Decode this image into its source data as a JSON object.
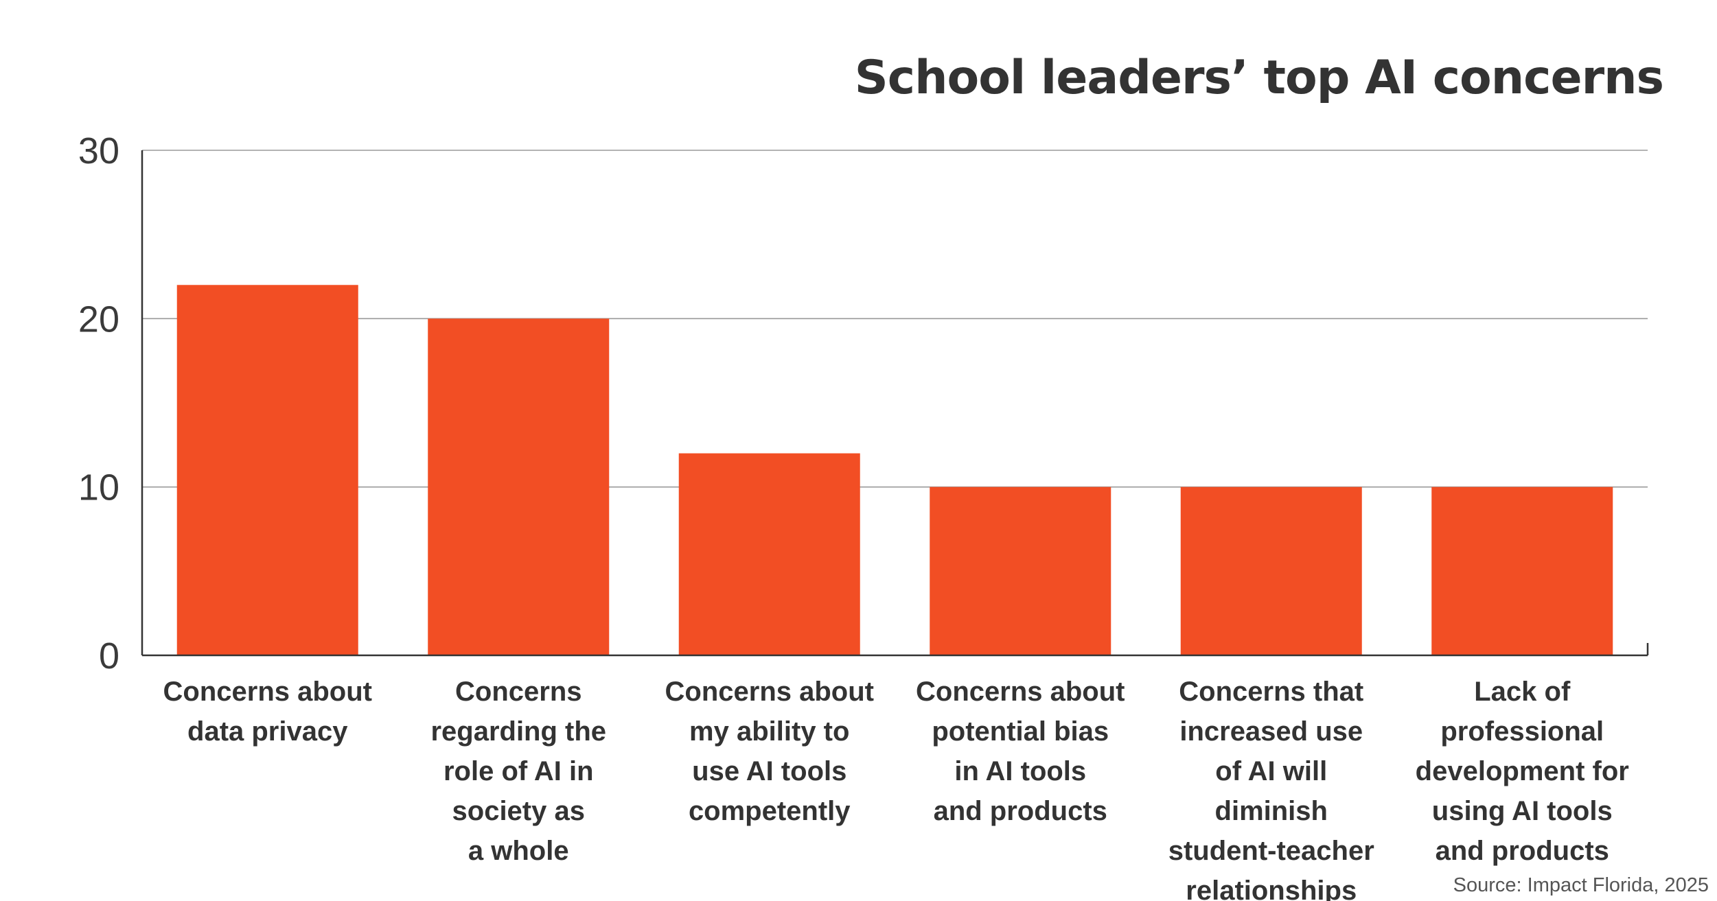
{
  "chart_data": {
    "type": "bar",
    "title": "School leaders’ top AI concerns",
    "xlabel": "",
    "ylabel": "",
    "ylim": [
      0,
      30
    ],
    "yticks": [
      0,
      10,
      20,
      30
    ],
    "grid": true,
    "bar_color": "#F24E24",
    "categories": [
      [
        "Concerns about",
        "data privacy"
      ],
      [
        "Concerns",
        "regarding the",
        "role of AI in",
        "society as",
        "a whole"
      ],
      [
        "Concerns about",
        "my ability to",
        "use AI tools",
        "competently"
      ],
      [
        "Concerns about",
        "potential bias",
        "in AI tools",
        "and products"
      ],
      [
        "Concerns that",
        "increased use",
        "of AI will",
        "diminish",
        "student-teacher",
        "relationships"
      ],
      [
        "Lack of",
        "professional",
        "development for",
        "using AI tools",
        "and products"
      ]
    ],
    "values": [
      22,
      20,
      12,
      10,
      10,
      10
    ]
  },
  "source": "Source: Impact Florida, 2025"
}
